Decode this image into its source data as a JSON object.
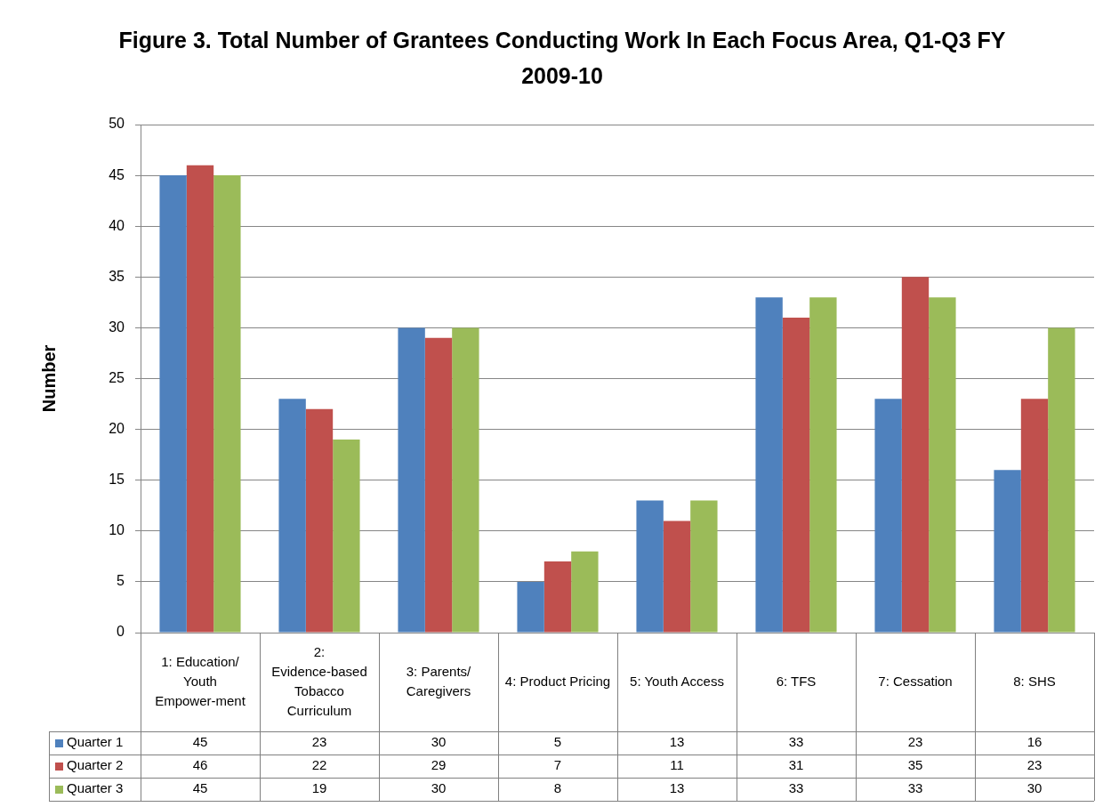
{
  "chart_data": {
    "type": "bar",
    "title": "Figure 3. Total Number of Grantees Conducting Work In Each Focus Area, Q1-Q3 FY 2009-10",
    "ylabel": "Number",
    "categories": [
      "1: Education/ Youth Empower-ment",
      "2: Evidence-based Tobacco Curriculum",
      "3: Parents/ Caregivers",
      "4: Product Pricing",
      "5: Youth Access",
      "6: TFS",
      "7: Cessation",
      "8: SHS"
    ],
    "series": [
      {
        "name": "Quarter 1",
        "color": "#4f81bd",
        "values": [
          45,
          23,
          30,
          5,
          13,
          33,
          23,
          16
        ]
      },
      {
        "name": "Quarter 2",
        "color": "#c0504d",
        "values": [
          46,
          22,
          29,
          7,
          11,
          31,
          35,
          23
        ]
      },
      {
        "name": "Quarter 3",
        "color": "#9bbb59",
        "values": [
          45,
          19,
          30,
          8,
          13,
          33,
          33,
          30
        ]
      }
    ],
    "ylim": [
      0,
      50
    ],
    "yticks": [
      0,
      5,
      10,
      15,
      20,
      25,
      30,
      35,
      40,
      45,
      50
    ],
    "grid": "y",
    "legend": "bottom left",
    "data_labels": true
  }
}
